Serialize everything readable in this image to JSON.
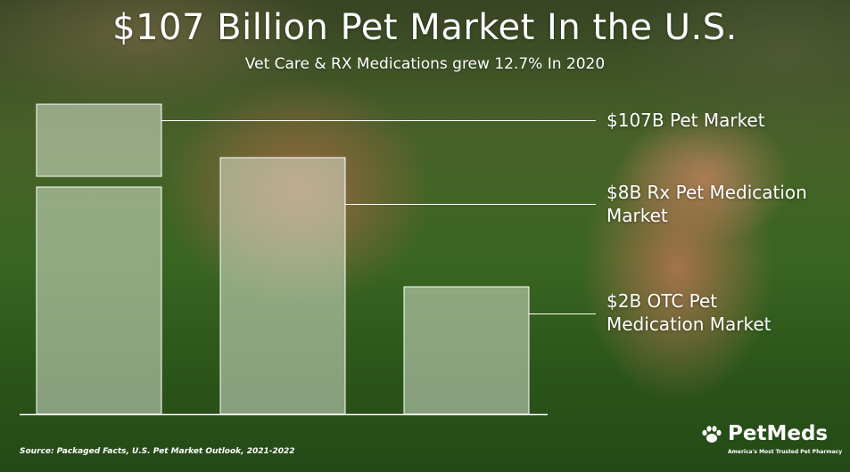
{
  "header": {
    "title": "$107 Billion Pet Market In the U.S.",
    "subtitle": "Vet Care & RX Medications grew 12.7% In 2020"
  },
  "chart_data": {
    "type": "bar",
    "categories": [
      "$107B Pet Market",
      "$8B Rx Pet Medication Market",
      "$2B OTC Pet Medication Market"
    ],
    "labels": [
      [
        "$107B Pet Market"
      ],
      [
        "$8B Rx Pet Medication",
        "Market"
      ],
      [
        "$2B OTC Pet",
        "Medication Market"
      ]
    ],
    "values": [
      107,
      8,
      2
    ],
    "grid": false,
    "legend": "none"
  },
  "footer": {
    "source": "Source: Packaged Facts, U.S. Pet Market Outlook, 2021-2022"
  },
  "logo": {
    "name": "PetMeds",
    "tagline": "America's Most Trusted Pet Pharmacy",
    "icon": "paw-icon"
  },
  "colors": {
    "bar_fill": "#e6efe0",
    "leader_line": "#ffffff",
    "text": "#ffffff"
  }
}
